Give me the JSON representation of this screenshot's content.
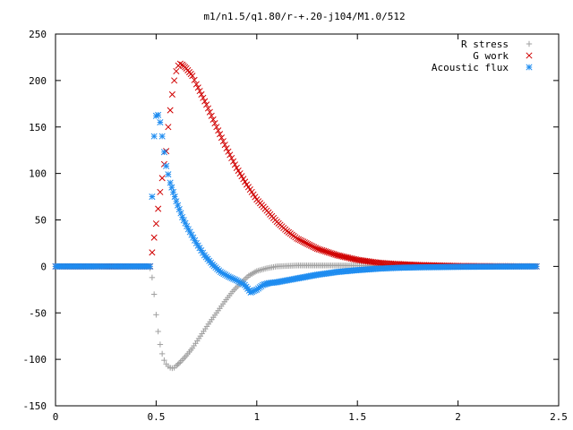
{
  "chart_data": {
    "type": "scatter",
    "title": "m1/n1.5/q1.80/r-+.20-j104/M1.0/512",
    "xlabel": "",
    "ylabel": "",
    "xlim": [
      0,
      2.5
    ],
    "ylim": [
      -150,
      250
    ],
    "xticks": [
      0,
      0.5,
      1,
      1.5,
      2,
      2.5
    ],
    "xtick_labels": [
      "0",
      "0.5",
      "1",
      "1.5",
      "2",
      "2.5"
    ],
    "yticks": [
      -150,
      -100,
      -50,
      0,
      50,
      100,
      150,
      200,
      250
    ],
    "ytick_labels": [
      "-150",
      "-100",
      "-50",
      "0",
      "50",
      "100",
      "150",
      "200",
      "250"
    ],
    "grid": false,
    "legend_position": "top-right",
    "series": [
      {
        "name": "R stress",
        "marker": "+",
        "color": "#a0a0a0",
        "points": [
          [
            0.0,
            0
          ],
          [
            0.1,
            0
          ],
          [
            0.2,
            0
          ],
          [
            0.3,
            0
          ],
          [
            0.4,
            0
          ],
          [
            0.46,
            0
          ],
          [
            0.47,
            -2
          ],
          [
            0.48,
            -12
          ],
          [
            0.49,
            -30
          ],
          [
            0.5,
            -52
          ],
          [
            0.51,
            -70
          ],
          [
            0.52,
            -84
          ],
          [
            0.53,
            -94
          ],
          [
            0.54,
            -101
          ],
          [
            0.55,
            -105
          ],
          [
            0.56,
            -107.5
          ],
          [
            0.57,
            -109
          ],
          [
            0.58,
            -109.5
          ],
          [
            0.59,
            -109
          ],
          [
            0.6,
            -107
          ],
          [
            0.62,
            -103
          ],
          [
            0.65,
            -96
          ],
          [
            0.68,
            -88
          ],
          [
            0.72,
            -75
          ],
          [
            0.76,
            -62
          ],
          [
            0.8,
            -50
          ],
          [
            0.84,
            -38
          ],
          [
            0.88,
            -27
          ],
          [
            0.92,
            -18
          ],
          [
            0.96,
            -10
          ],
          [
            1.0,
            -5
          ],
          [
            1.05,
            -2
          ],
          [
            1.1,
            0
          ],
          [
            1.2,
            1
          ],
          [
            1.4,
            1
          ],
          [
            1.7,
            0.5
          ],
          [
            2.0,
            0
          ],
          [
            2.39,
            0
          ]
        ]
      },
      {
        "name": "G work",
        "marker": "x",
        "color": "#d00000",
        "points": [
          [
            0.0,
            0
          ],
          [
            0.2,
            0
          ],
          [
            0.4,
            0
          ],
          [
            0.47,
            0
          ],
          [
            0.48,
            15
          ],
          [
            0.49,
            31
          ],
          [
            0.5,
            46
          ],
          [
            0.51,
            62
          ],
          [
            0.52,
            80
          ],
          [
            0.53,
            95
          ],
          [
            0.54,
            110
          ],
          [
            0.55,
            124
          ],
          [
            0.56,
            150
          ],
          [
            0.57,
            168
          ],
          [
            0.58,
            185
          ],
          [
            0.59,
            200
          ],
          [
            0.6,
            210
          ],
          [
            0.61,
            216
          ],
          [
            0.62,
            218
          ],
          [
            0.63,
            217
          ],
          [
            0.65,
            213
          ],
          [
            0.68,
            205
          ],
          [
            0.7,
            196
          ],
          [
            0.75,
            174
          ],
          [
            0.8,
            150
          ],
          [
            0.85,
            127
          ],
          [
            0.9,
            106
          ],
          [
            0.95,
            88
          ],
          [
            1.0,
            72
          ],
          [
            1.05,
            60
          ],
          [
            1.1,
            48
          ],
          [
            1.15,
            38
          ],
          [
            1.2,
            30
          ],
          [
            1.3,
            19
          ],
          [
            1.4,
            12
          ],
          [
            1.5,
            7
          ],
          [
            1.6,
            4
          ],
          [
            1.7,
            2.5
          ],
          [
            1.8,
            1.5
          ],
          [
            2.0,
            0.5
          ],
          [
            2.2,
            0.2
          ],
          [
            2.39,
            0
          ]
        ]
      },
      {
        "name": "Acoustic flux",
        "marker": "*",
        "color": "#1e8cf0",
        "points": [
          [
            0.0,
            0
          ],
          [
            0.1,
            0
          ],
          [
            0.2,
            0
          ],
          [
            0.3,
            0
          ],
          [
            0.4,
            0
          ],
          [
            0.47,
            0
          ],
          [
            0.48,
            75
          ],
          [
            0.49,
            140
          ],
          [
            0.5,
            162
          ],
          [
            0.51,
            163
          ],
          [
            0.52,
            155
          ],
          [
            0.53,
            140
          ],
          [
            0.54,
            123
          ],
          [
            0.55,
            108
          ],
          [
            0.57,
            90
          ],
          [
            0.6,
            70
          ],
          [
            0.63,
            53
          ],
          [
            0.66,
            40
          ],
          [
            0.7,
            25
          ],
          [
            0.74,
            12
          ],
          [
            0.78,
            2
          ],
          [
            0.82,
            -6
          ],
          [
            0.86,
            -11
          ],
          [
            0.9,
            -15
          ],
          [
            0.94,
            -20
          ],
          [
            0.97,
            -28
          ],
          [
            1.0,
            -25
          ],
          [
            1.03,
            -20
          ],
          [
            1.06,
            -18
          ],
          [
            1.1,
            -17
          ],
          [
            1.2,
            -13
          ],
          [
            1.3,
            -9
          ],
          [
            1.4,
            -6
          ],
          [
            1.5,
            -4
          ],
          [
            1.6,
            -2.5
          ],
          [
            1.7,
            -1.5
          ],
          [
            1.8,
            -1
          ],
          [
            2.0,
            -0.5
          ],
          [
            2.2,
            -0.2
          ],
          [
            2.39,
            0
          ]
        ]
      }
    ]
  }
}
